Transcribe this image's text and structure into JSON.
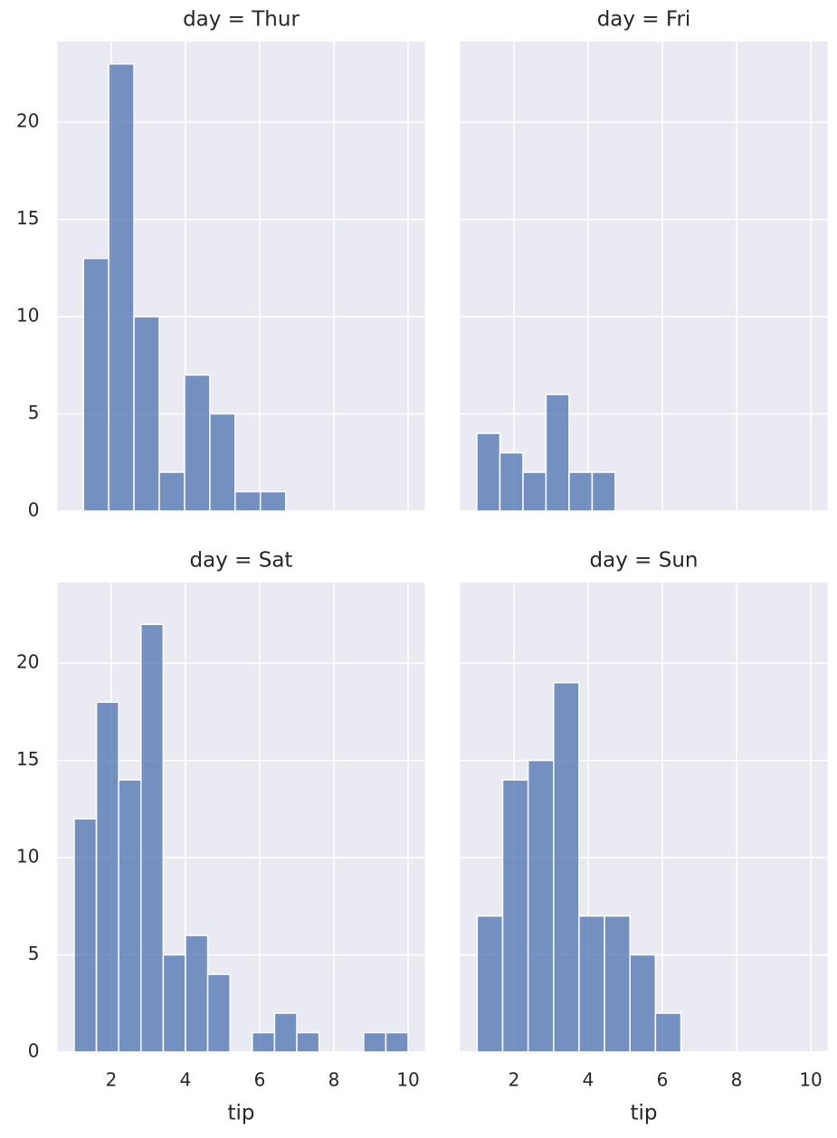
{
  "chart_data": [
    {
      "type": "histogram",
      "title": "day = Thur",
      "color": "#4c72b0",
      "grid": true,
      "bins": [
        1.25,
        1.93125,
        2.6125,
        3.29375,
        3.975,
        4.65625,
        5.3375,
        6.01875,
        6.7
      ],
      "values": [
        13,
        23,
        10,
        2,
        7,
        5,
        1,
        1
      ],
      "xlim": [
        0.55,
        10.45
      ],
      "ylim": [
        0,
        24.15
      ],
      "xticks": [
        2,
        4,
        6,
        8,
        10
      ],
      "yticks": [
        0,
        5,
        10,
        15,
        20
      ]
    },
    {
      "type": "histogram",
      "title": "day = Fri",
      "color": "#4c72b0",
      "grid": true,
      "bins": [
        1.0,
        1.6217,
        2.2433,
        2.865,
        3.4867,
        4.1083,
        4.73
      ],
      "values": [
        4,
        3,
        2,
        6,
        2,
        2
      ],
      "xlim": [
        0.55,
        10.45
      ],
      "ylim": [
        0,
        24.15
      ],
      "xticks": [
        2,
        4,
        6,
        8,
        10
      ],
      "yticks": [
        0,
        5,
        10,
        15,
        20
      ]
    },
    {
      "type": "histogram",
      "title": "day = Sat",
      "color": "#4c72b0",
      "grid": true,
      "xlabel": "tip",
      "bins": [
        1,
        1.6,
        2.2,
        2.8,
        3.4,
        4,
        4.6,
        5.2,
        5.8,
        6.4,
        7,
        7.6,
        8.2,
        8.8,
        9.4,
        10
      ],
      "values": [
        12,
        18,
        14,
        22,
        5,
        6,
        4,
        0,
        1,
        2,
        1,
        0,
        0,
        1,
        1
      ],
      "xlim": [
        0.55,
        10.45
      ],
      "ylim": [
        0,
        24.15
      ],
      "xticks": [
        2,
        4,
        6,
        8,
        10
      ],
      "yticks": [
        0,
        5,
        10,
        15,
        20
      ]
    },
    {
      "type": "histogram",
      "title": "day = Sun",
      "color": "#4c72b0",
      "grid": true,
      "xlabel": "tip",
      "bins": [
        1.01,
        1.69625,
        2.3825,
        3.06875,
        3.755,
        4.44125,
        5.1275,
        5.81375,
        6.5
      ],
      "values": [
        7,
        14,
        15,
        19,
        7,
        7,
        5,
        2
      ],
      "xlim": [
        0.55,
        10.45
      ],
      "ylim": [
        0,
        24.15
      ],
      "xticks": [
        2,
        4,
        6,
        8,
        10
      ],
      "yticks": [
        0,
        5,
        10,
        15,
        20
      ]
    }
  ]
}
